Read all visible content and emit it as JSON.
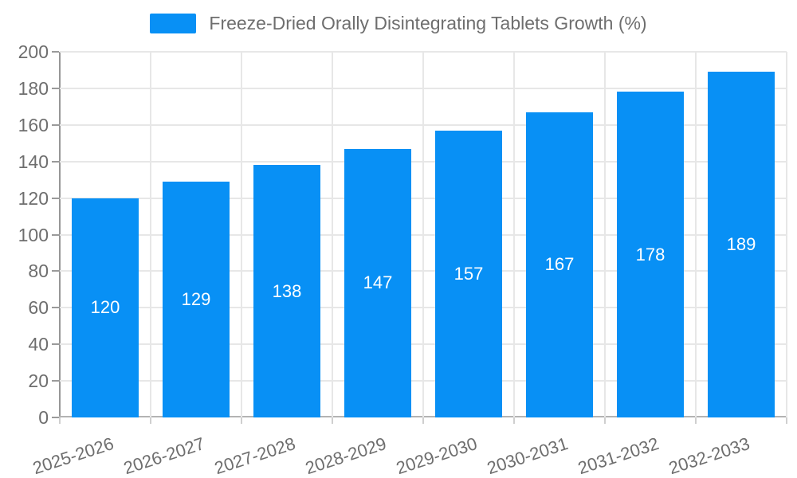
{
  "legend": {
    "label": "Freeze-Dried Orally Disintegrating Tablets Growth (%)"
  },
  "chart_data": {
    "type": "bar",
    "title": "Freeze-Dried Orally Disintegrating Tablets Growth (%)",
    "categories": [
      "2025-2026",
      "2026-2027",
      "2027-2028",
      "2028-2029",
      "2029-2030",
      "2030-2031",
      "2031-2032",
      "2032-2033"
    ],
    "values": [
      120,
      129,
      138,
      147,
      157,
      167,
      178,
      189
    ],
    "xlabel": "",
    "ylabel": "",
    "ylim": [
      0,
      200
    ],
    "yticks": [
      "0",
      "20",
      "40",
      "60",
      "80",
      "100",
      "120",
      "140",
      "160",
      "180",
      "200"
    ],
    "grid": true,
    "legend_position": "top",
    "value_labels": "inside-center"
  },
  "colors": {
    "bar": "#0890f5",
    "axis_text": "#6e6e6e",
    "value_text": "#ffffff",
    "gridline": "#e7e7e7",
    "y_axis_line": "#979797",
    "x_axis_line": "#b3b3b3",
    "background": "#ffffff"
  }
}
